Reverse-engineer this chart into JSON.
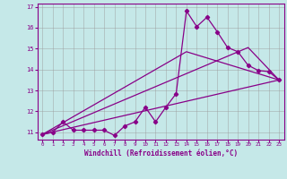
{
  "xlabel": "Windchill (Refroidissement éolien,°C)",
  "xlim": [
    -0.5,
    23.5
  ],
  "ylim": [
    10.65,
    17.15
  ],
  "xticks": [
    0,
    1,
    2,
    3,
    4,
    5,
    6,
    7,
    8,
    9,
    10,
    11,
    12,
    13,
    14,
    15,
    16,
    17,
    18,
    19,
    20,
    21,
    22,
    23
  ],
  "yticks": [
    11,
    12,
    13,
    14,
    15,
    16,
    17
  ],
  "bg_color": "#c5e8e8",
  "line_color": "#880088",
  "grid_color": "#999999",
  "line1_x": [
    0,
    1,
    2,
    3,
    4,
    5,
    6,
    7,
    8,
    9,
    10,
    11,
    12,
    13,
    14,
    15,
    16,
    17,
    18,
    19,
    20,
    21,
    22,
    23
  ],
  "line1_y": [
    10.9,
    11.0,
    11.5,
    11.1,
    11.1,
    11.1,
    11.1,
    10.85,
    11.3,
    11.5,
    12.2,
    11.5,
    12.2,
    12.85,
    16.8,
    16.05,
    16.5,
    15.8,
    15.05,
    14.85,
    14.2,
    13.95,
    13.9,
    13.5
  ],
  "line2_x": [
    0,
    23
  ],
  "line2_y": [
    10.9,
    13.5
  ],
  "line3_x": [
    0,
    14,
    23
  ],
  "line3_y": [
    10.9,
    14.85,
    13.5
  ],
  "line4_x": [
    0,
    20,
    23
  ],
  "line4_y": [
    10.9,
    15.05,
    13.5
  ]
}
